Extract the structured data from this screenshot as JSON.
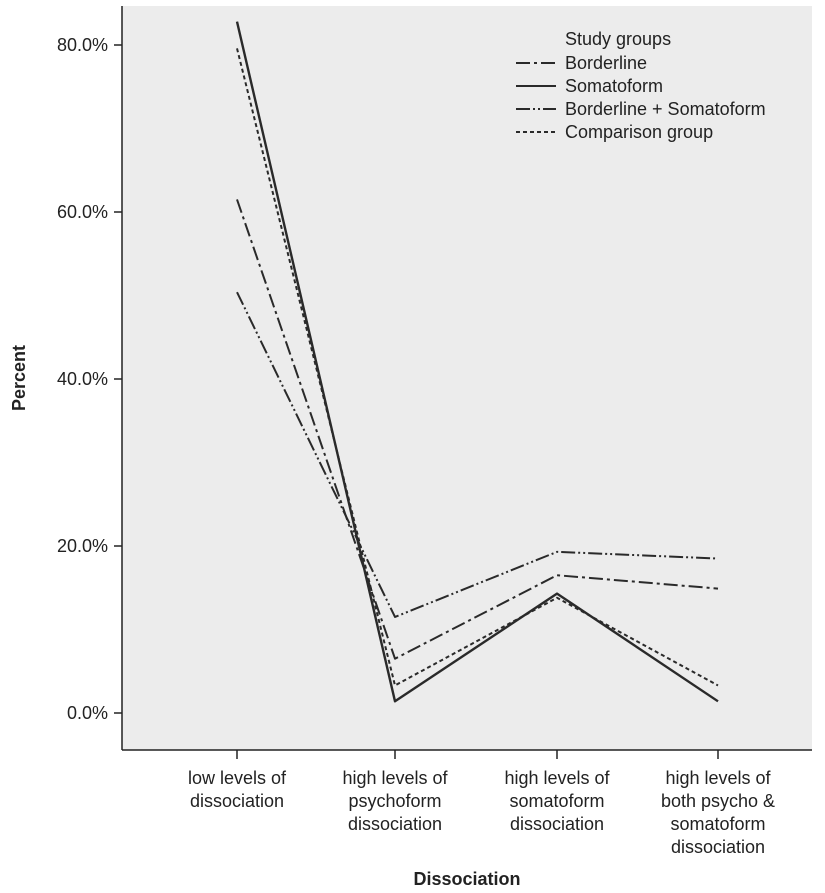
{
  "chart_data": {
    "type": "line",
    "title": "",
    "xlabel": "Dissociation",
    "ylabel": "Percent",
    "ylim": [
      0,
      85
    ],
    "y_ticks": [
      0,
      20,
      40,
      60,
      80
    ],
    "y_tick_labels": [
      "0.0%",
      "20.0%",
      "40.0%",
      "60.0%",
      "80.0%"
    ],
    "categories": [
      [
        "low levels of",
        "dissociation"
      ],
      [
        "high levels of",
        "psychoform",
        "dissociation"
      ],
      [
        "high levels of",
        "somatoform",
        "dissociation"
      ],
      [
        "high levels of",
        "both psycho &",
        "somatoform",
        "dissociation"
      ]
    ],
    "grid": false,
    "background": "#ececec",
    "legend": {
      "title": "Study groups",
      "placement": "top-right"
    },
    "series": [
      {
        "name": "Borderline",
        "dash": "dashdot",
        "values": [
          61.5,
          6.5,
          16.5,
          14.9
        ]
      },
      {
        "name": "Somatoform",
        "dash": "solid",
        "values": [
          82.8,
          1.4,
          14.3,
          1.4
        ]
      },
      {
        "name": "Borderline + Somatoform",
        "dash": "dashdotdot",
        "values": [
          50.4,
          11.5,
          19.3,
          18.5
        ]
      },
      {
        "name": "Comparison group",
        "dash": "dotted",
        "values": [
          79.6,
          3.3,
          13.8,
          3.3
        ]
      }
    ]
  }
}
